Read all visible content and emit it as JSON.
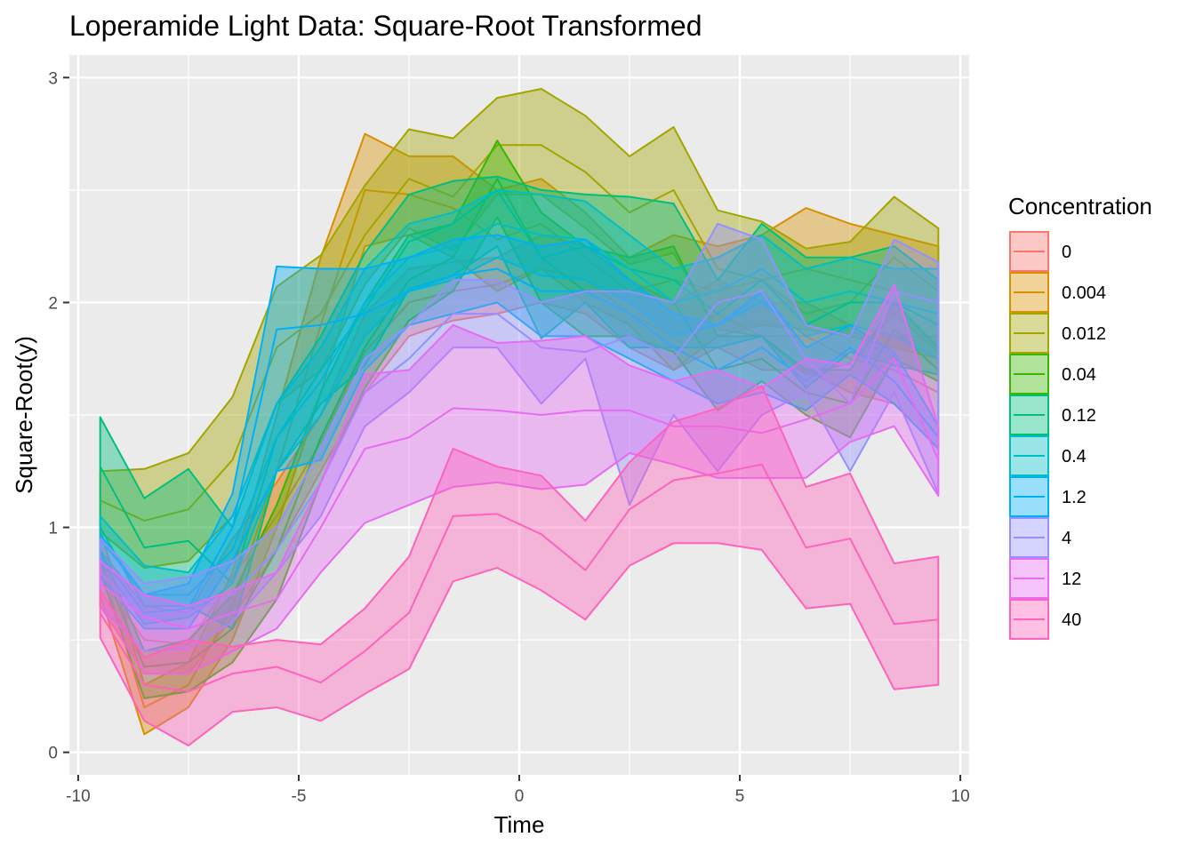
{
  "chart_data": {
    "type": "area",
    "title": "Loperamide Light Data: Square-Root Transformed",
    "xlabel": "Time",
    "ylabel": "Square-Root(y)",
    "xlim": [
      -10.2,
      10.2
    ],
    "ylim": [
      -0.1,
      3.1
    ],
    "x_ticks": [
      -10,
      -5,
      0,
      5,
      10
    ],
    "x_tick_labels": [
      "-10",
      "-5",
      "0",
      "5",
      "10"
    ],
    "y_ticks": [
      0,
      1,
      2,
      3
    ],
    "y_tick_labels": [
      "0",
      "1",
      "2",
      "3"
    ],
    "grid": true,
    "legend": {
      "title": "Concentration",
      "position": "right"
    },
    "x": [
      -9.5,
      -8.5,
      -7.5,
      -6.5,
      -5.5,
      -4.5,
      -3.5,
      -2.5,
      -1.5,
      -0.5,
      0.5,
      1.5,
      2.5,
      3.5,
      4.5,
      5.5,
      6.5,
      7.5,
      8.5,
      9.5
    ],
    "series": [
      {
        "name": "0",
        "color": "#F8766D",
        "upper": [
          0.9,
          0.65,
          0.62,
          0.95,
          1.2,
          1.5,
          1.95,
          2.15,
          2.18,
          2.2,
          2.3,
          2.25,
          2.1,
          2.0,
          2.1,
          2.0,
          2.0,
          1.9,
          1.85,
          1.85
        ],
        "mid": [
          0.78,
          0.5,
          0.48,
          0.78,
          1.05,
          1.38,
          1.78,
          2.0,
          2.05,
          2.08,
          2.15,
          2.1,
          1.95,
          1.85,
          1.95,
          1.85,
          1.85,
          1.75,
          1.7,
          1.6
        ],
        "lower": [
          0.65,
          0.35,
          0.35,
          0.6,
          0.9,
          1.25,
          1.6,
          1.85,
          1.92,
          1.95,
          2.0,
          1.95,
          1.8,
          1.7,
          1.8,
          1.7,
          1.7,
          1.6,
          1.55,
          1.35
        ]
      },
      {
        "name": "0.004",
        "color": "#D89000",
        "upper": [
          1.0,
          0.3,
          0.4,
          0.8,
          1.5,
          2.2,
          2.75,
          2.65,
          2.65,
          2.5,
          2.55,
          2.4,
          2.2,
          2.3,
          2.25,
          2.3,
          2.42,
          2.35,
          2.3,
          2.25
        ],
        "mid": [
          0.85,
          0.2,
          0.3,
          0.65,
          1.25,
          1.9,
          2.5,
          2.48,
          2.42,
          2.28,
          2.35,
          2.2,
          2.05,
          2.1,
          2.05,
          2.1,
          2.15,
          2.1,
          2.05,
          2.0
        ],
        "lower": [
          0.7,
          0.08,
          0.2,
          0.5,
          1.0,
          1.6,
          2.25,
          2.3,
          2.2,
          2.05,
          2.15,
          2.0,
          1.9,
          1.7,
          1.85,
          1.9,
          1.88,
          1.85,
          1.8,
          1.75
        ]
      },
      {
        "name": "0.012",
        "color": "#A3A500",
        "upper": [
          1.25,
          1.26,
          1.33,
          1.58,
          2.07,
          2.21,
          2.52,
          2.77,
          2.73,
          2.91,
          2.95,
          2.83,
          2.65,
          2.78,
          2.41,
          2.36,
          2.24,
          2.27,
          2.47,
          2.33
        ],
        "mid": [
          1.12,
          1.03,
          1.08,
          1.3,
          1.8,
          1.95,
          2.3,
          2.55,
          2.47,
          2.7,
          2.7,
          2.58,
          2.4,
          2.5,
          2.15,
          2.1,
          1.95,
          2.0,
          2.2,
          2.05
        ],
        "lower": [
          0.98,
          0.82,
          0.85,
          1.05,
          1.55,
          1.7,
          2.08,
          2.33,
          2.23,
          2.48,
          2.48,
          2.33,
          2.17,
          2.22,
          1.88,
          1.85,
          1.68,
          1.73,
          1.95,
          1.78
        ]
      },
      {
        "name": "0.04",
        "color": "#39B600",
        "upper": [
          0.9,
          0.45,
          0.5,
          0.7,
          1.1,
          1.6,
          2.0,
          2.3,
          2.35,
          2.72,
          2.4,
          2.25,
          2.2,
          2.25,
          1.85,
          1.85,
          1.7,
          1.7,
          2.0,
          1.8
        ],
        "mid": [
          0.85,
          0.38,
          0.4,
          0.55,
          0.9,
          1.4,
          1.8,
          2.1,
          2.2,
          2.55,
          2.2,
          2.05,
          2.05,
          2.0,
          1.7,
          1.75,
          1.6,
          1.55,
          1.88,
          1.7
        ],
        "lower": [
          0.8,
          0.24,
          0.27,
          0.4,
          0.68,
          1.2,
          1.62,
          1.92,
          2.05,
          2.38,
          2.0,
          1.85,
          1.85,
          1.78,
          1.52,
          1.65,
          1.5,
          1.4,
          1.75,
          1.65
        ]
      },
      {
        "name": "0.12",
        "color": "#00BF7D",
        "upper": [
          1.49,
          1.13,
          1.26,
          1.0,
          1.55,
          1.85,
          2.22,
          2.48,
          2.54,
          2.56,
          2.5,
          2.48,
          2.47,
          2.44,
          2.1,
          2.35,
          2.2,
          2.2,
          2.25,
          2.1
        ],
        "mid": [
          1.27,
          0.91,
          0.94,
          0.75,
          1.4,
          1.7,
          1.97,
          2.27,
          2.35,
          2.5,
          2.2,
          2.25,
          2.15,
          2.1,
          1.95,
          2.1,
          1.9,
          2.0,
          2.0,
          1.9
        ],
        "lower": [
          1.0,
          0.65,
          0.65,
          0.55,
          1.25,
          1.55,
          1.72,
          2.06,
          2.12,
          2.25,
          1.84,
          2.0,
          1.8,
          1.8,
          1.8,
          1.85,
          1.62,
          1.78,
          1.72,
          1.68
        ]
      },
      {
        "name": "0.4",
        "color": "#00BFC4",
        "upper": [
          1.05,
          0.83,
          0.8,
          1.05,
          1.55,
          1.8,
          2.15,
          2.35,
          2.4,
          2.5,
          2.48,
          2.45,
          2.3,
          2.15,
          2.2,
          2.3,
          2.15,
          2.2,
          2.15,
          2.15
        ],
        "mid": [
          0.95,
          0.7,
          0.7,
          0.9,
          1.4,
          1.65,
          2.0,
          2.2,
          2.25,
          2.35,
          2.3,
          2.28,
          2.15,
          2.0,
          2.05,
          2.15,
          2.0,
          2.05,
          2.0,
          1.95
        ],
        "lower": [
          0.85,
          0.57,
          0.6,
          0.75,
          1.25,
          1.5,
          1.85,
          2.05,
          2.1,
          2.2,
          2.12,
          2.1,
          2.0,
          1.85,
          1.9,
          2.0,
          1.85,
          1.9,
          1.85,
          1.75
        ]
      },
      {
        "name": "1.2",
        "color": "#00B0F6",
        "upper": [
          0.97,
          0.7,
          0.75,
          1.15,
          2.16,
          2.15,
          2.15,
          2.2,
          2.28,
          2.3,
          2.25,
          2.28,
          2.1,
          1.95,
          1.9,
          2.05,
          1.8,
          1.9,
          1.78,
          1.45
        ],
        "mid": [
          0.88,
          0.62,
          0.64,
          1.0,
          1.88,
          1.9,
          1.95,
          2.05,
          2.12,
          2.15,
          2.05,
          2.05,
          1.95,
          1.8,
          1.7,
          1.8,
          1.65,
          1.8,
          1.65,
          1.4
        ],
        "lower": [
          0.78,
          0.55,
          0.55,
          0.85,
          1.25,
          1.3,
          1.7,
          1.9,
          1.95,
          2.0,
          1.85,
          1.85,
          1.75,
          1.65,
          1.55,
          1.6,
          1.52,
          1.68,
          1.55,
          1.35
        ]
      },
      {
        "name": "4",
        "color": "#9590FF",
        "upper": [
          0.95,
          0.75,
          0.78,
          0.85,
          1.0,
          1.35,
          1.75,
          1.9,
          2.1,
          2.1,
          2.0,
          2.05,
          2.05,
          2.0,
          2.35,
          2.28,
          1.9,
          1.85,
          2.28,
          2.18
        ],
        "mid": [
          0.8,
          0.6,
          0.62,
          0.7,
          0.9,
          1.2,
          1.6,
          1.75,
          1.95,
          1.95,
          1.8,
          1.78,
          1.85,
          1.75,
          2.0,
          2.05,
          1.75,
          1.55,
          2.05,
          2.0
        ],
        "lower": [
          0.65,
          0.45,
          0.46,
          0.58,
          0.8,
          1.05,
          1.45,
          1.6,
          1.8,
          1.8,
          1.55,
          1.75,
          1.1,
          1.5,
          1.25,
          1.5,
          1.6,
          1.25,
          1.6,
          1.15
        ]
      },
      {
        "name": "12",
        "color": "#E76BF3",
        "upper": [
          0.85,
          0.7,
          0.65,
          0.72,
          0.8,
          1.2,
          1.68,
          1.7,
          1.9,
          1.82,
          1.83,
          1.85,
          1.72,
          1.65,
          1.7,
          1.62,
          1.75,
          1.72,
          2.08,
          1.45
        ],
        "mid": [
          0.75,
          0.6,
          0.55,
          0.62,
          0.68,
          1.0,
          1.35,
          1.4,
          1.53,
          1.52,
          1.5,
          1.52,
          1.52,
          1.45,
          1.45,
          1.42,
          1.48,
          1.55,
          1.75,
          1.3
        ],
        "lower": [
          0.65,
          0.35,
          0.35,
          0.45,
          0.55,
          0.8,
          1.02,
          1.1,
          1.18,
          1.2,
          1.17,
          1.19,
          1.33,
          1.28,
          1.22,
          1.22,
          1.22,
          1.38,
          1.45,
          1.14
        ]
      },
      {
        "name": "40",
        "color": "#FF62BC",
        "upper": [
          0.72,
          0.42,
          0.5,
          0.47,
          0.5,
          0.48,
          0.64,
          0.87,
          1.35,
          1.27,
          1.23,
          1.03,
          1.29,
          1.47,
          1.53,
          1.63,
          1.18,
          1.24,
          0.84,
          0.87
        ],
        "mid": [
          0.62,
          0.3,
          0.27,
          0.35,
          0.38,
          0.31,
          0.45,
          0.62,
          1.05,
          1.06,
          0.97,
          0.81,
          1.08,
          1.21,
          1.24,
          1.28,
          0.91,
          0.95,
          0.57,
          0.59
        ],
        "lower": [
          0.51,
          0.14,
          0.03,
          0.18,
          0.2,
          0.14,
          0.26,
          0.37,
          0.76,
          0.82,
          0.72,
          0.59,
          0.83,
          0.93,
          0.93,
          0.9,
          0.64,
          0.66,
          0.28,
          0.3
        ]
      }
    ]
  }
}
